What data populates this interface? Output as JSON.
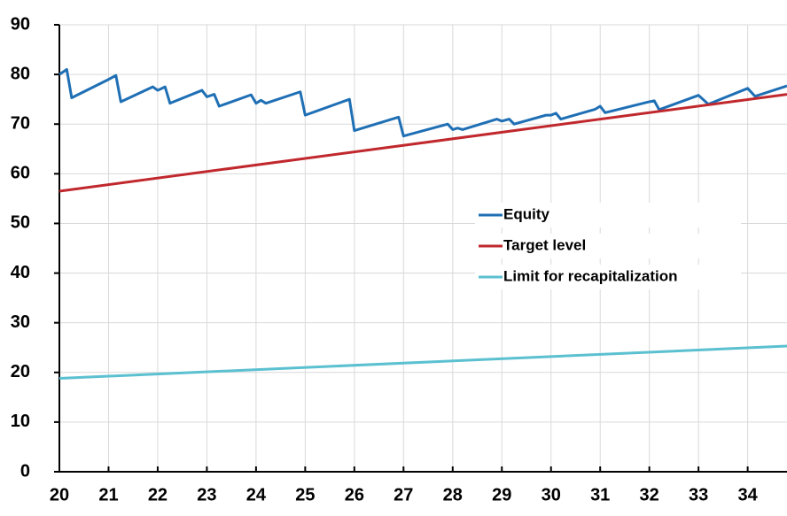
{
  "chart_data": {
    "type": "line",
    "xlim": [
      20,
      34.8
    ],
    "xticks": [
      20,
      21,
      22,
      23,
      24,
      25,
      26,
      27,
      28,
      29,
      30,
      31,
      32,
      33,
      34
    ],
    "ylim": [
      0,
      90
    ],
    "yticks": [
      0,
      10,
      20,
      30,
      40,
      50,
      60,
      70,
      80,
      90
    ],
    "grid": true,
    "legend": "center-right",
    "series": [
      {
        "name": "Equity",
        "color": "#1f6fb5",
        "x": [
          20,
          20.15,
          20.25,
          21,
          21.15,
          21.25,
          21.9,
          22,
          22.15,
          22.25,
          22.9,
          23,
          23.15,
          23.25,
          23.9,
          24,
          24.1,
          24.2,
          24.9,
          25,
          25.9,
          26,
          26.9,
          27,
          27.9,
          28,
          28.1,
          28.2,
          28.9,
          29,
          29.15,
          29.25,
          29.9,
          30,
          30.1,
          30.2,
          30.9,
          31,
          31.1,
          32,
          32.1,
          32.2,
          33,
          33.2,
          34,
          34.15,
          34.8
        ],
        "values": [
          80,
          81,
          75.3,
          79,
          79.8,
          74.5,
          77.5,
          76.8,
          77.5,
          74.2,
          76.8,
          75.5,
          76,
          73.6,
          75.9,
          74.2,
          74.8,
          74.2,
          76.5,
          71.8,
          75,
          68.7,
          71.4,
          67.6,
          70,
          68.9,
          69.2,
          68.9,
          71,
          70.6,
          71,
          70,
          71.8,
          71.8,
          72.2,
          71,
          73,
          73.6,
          72.3,
          74.5,
          74.7,
          72.9,
          75.8,
          74,
          77.2,
          75.6,
          77.7
        ]
      },
      {
        "name": "Target level",
        "color": "#c0282d",
        "x": [
          20,
          34.8
        ],
        "values": [
          56.5,
          76
        ]
      },
      {
        "name": "Limit for recapitalization",
        "color": "#5bc0d0",
        "x": [
          20,
          34.8
        ],
        "values": [
          18.8,
          25.3
        ]
      }
    ]
  }
}
